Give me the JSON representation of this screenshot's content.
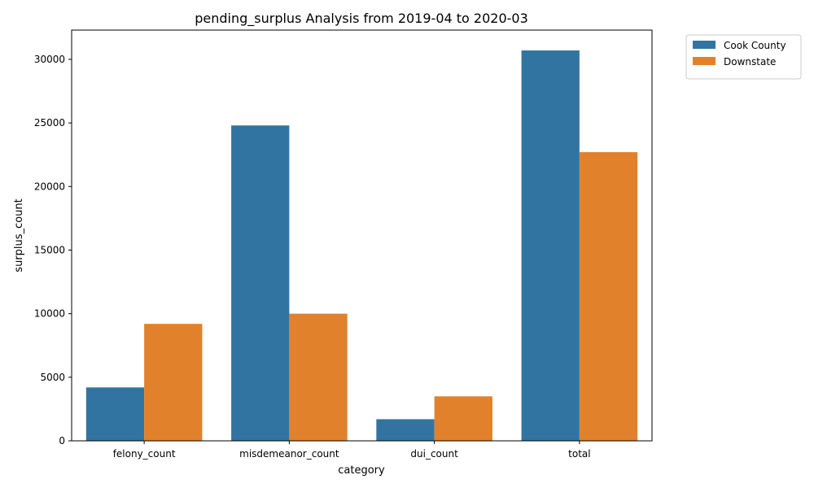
{
  "chart_data": {
    "type": "bar",
    "title": "pending_surplus Analysis from 2019-04 to 2020-03",
    "xlabel": "category",
    "ylabel": "surplus_count",
    "categories": [
      "felony_count",
      "misdemeanor_count",
      "dui_count",
      "total"
    ],
    "series": [
      {
        "name": "Cook County",
        "color": "#3274a1",
        "values": [
          4200,
          24800,
          1700,
          30700
        ]
      },
      {
        "name": "Downstate",
        "color": "#e1812c",
        "values": [
          9200,
          10000,
          3500,
          22700
        ]
      }
    ],
    "ylim": [
      0,
      32300
    ],
    "yticks": [
      0,
      5000,
      10000,
      15000,
      20000,
      25000,
      30000
    ],
    "grid": false,
    "legend_position": "outside-top-right"
  }
}
